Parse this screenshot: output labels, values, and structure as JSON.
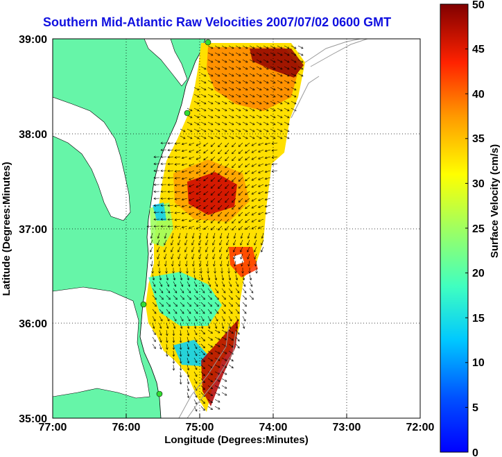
{
  "title": "Southern Mid-Atlantic Raw Velocities 2007/07/02 0600 GMT",
  "x_axis": {
    "label": "Longitude (Degrees:Minutes)",
    "ticks": [
      "77:00",
      "76:00",
      "75:00",
      "74:00",
      "73:00",
      "72:00"
    ]
  },
  "y_axis": {
    "label": "Latitude (Degrees:Minutes)",
    "ticks": [
      "35:00",
      "36:00",
      "37:00",
      "38:00",
      "39:00"
    ]
  },
  "colorbar": {
    "label": "Surface Velocity (cm/s)",
    "ticks": [
      "0",
      "5",
      "10",
      "15",
      "20",
      "25",
      "30",
      "35",
      "40",
      "45",
      "50"
    ],
    "min": 0,
    "max": 50,
    "colormap": "jet"
  },
  "colors": {
    "title": "#1010e0",
    "land": "#66f5a8",
    "water": "#ffffff",
    "station_marker": "#33dd33",
    "bathymetry": "#999999"
  },
  "chart_data": {
    "type": "map",
    "lon_range_west": [
      72,
      77
    ],
    "lat_range": [
      35,
      39
    ],
    "grid": true,
    "stations": [
      {
        "lon": 74.92,
        "lat": 38.96
      },
      {
        "lon": 75.14,
        "lat": 38.22
      },
      {
        "lon": 75.68,
        "lat": 36.18
      },
      {
        "lon": 75.5,
        "lat": 35.25
      }
    ]
  }
}
